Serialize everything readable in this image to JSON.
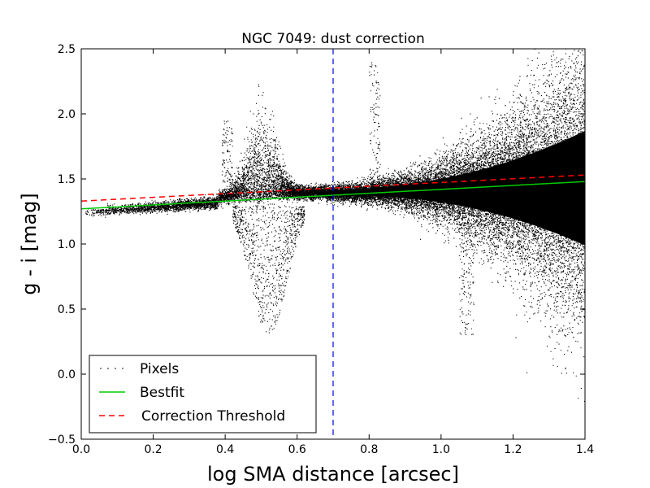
{
  "chart_data": {
    "type": "scatter",
    "title": "NGC 7049: dust correction",
    "xlabel": "log SMA distance [arcsec]",
    "ylabel": "g - i [mag]",
    "xlim": [
      0.0,
      1.4
    ],
    "ylim": [
      -0.5,
      2.5
    ],
    "xticks": [
      0.0,
      0.2,
      0.4,
      0.6,
      0.8,
      1.0,
      1.2,
      1.4
    ],
    "yticks": [
      -0.5,
      0.0,
      0.5,
      1.0,
      1.5,
      2.0,
      2.5
    ],
    "xtick_labels": [
      "0.0",
      "0.2",
      "0.4",
      "0.6",
      "0.8",
      "1.0",
      "1.2",
      "1.4"
    ],
    "ytick_labels": [
      "−0.5",
      "0.0",
      "0.5",
      "1.0",
      "1.5",
      "2.0",
      "2.5"
    ],
    "grid": false,
    "legend_position": "bottom-left",
    "colors": {
      "pixels": "#000000",
      "bestfit": "#00cc00",
      "threshold": "#ff0000",
      "vline": "#0000ff"
    },
    "series": [
      {
        "name": "Pixels",
        "kind": "scatter",
        "description_points": [
          [
            0.0,
            1.25
          ],
          [
            0.1,
            1.26
          ],
          [
            0.2,
            1.29
          ],
          [
            0.3,
            1.32
          ],
          [
            0.4,
            1.35
          ],
          [
            0.5,
            1.6
          ],
          [
            0.6,
            1.4
          ],
          [
            0.7,
            1.38
          ],
          [
            0.8,
            1.4
          ],
          [
            0.9,
            1.41
          ],
          [
            1.0,
            1.42
          ],
          [
            1.1,
            1.42
          ],
          [
            1.2,
            1.43
          ],
          [
            1.3,
            1.43
          ],
          [
            1.4,
            1.44
          ]
        ]
      },
      {
        "name": "Bestfit",
        "kind": "line",
        "x": [
          0.0,
          1.4
        ],
        "y": [
          1.27,
          1.48
        ]
      },
      {
        "name": "Correction Threshold",
        "kind": "dashed-line",
        "x": [
          0.0,
          1.4
        ],
        "y": [
          1.33,
          1.53
        ]
      }
    ],
    "vertical_lines": [
      {
        "x": 0.7,
        "style": "dashed",
        "color": "#0000ff"
      }
    ]
  }
}
